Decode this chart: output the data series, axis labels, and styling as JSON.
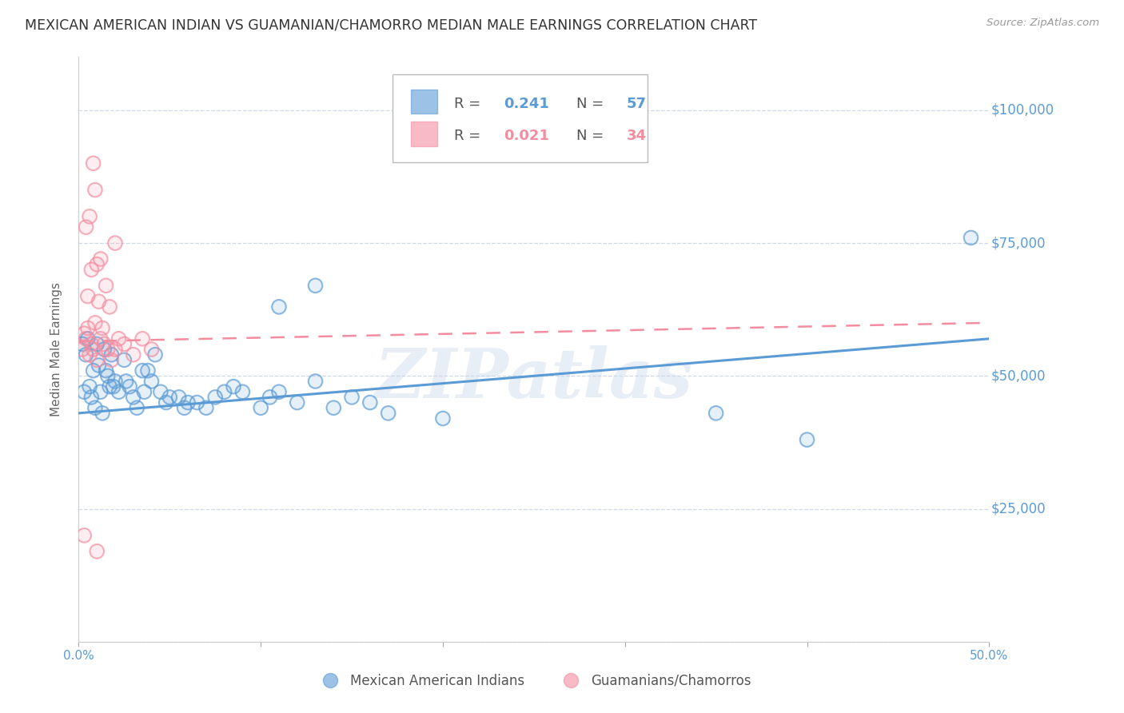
{
  "title": "MEXICAN AMERICAN INDIAN VS GUAMANIAN/CHAMORRO MEDIAN MALE EARNINGS CORRELATION CHART",
  "source": "Source: ZipAtlas.com",
  "ylabel": "Median Male Earnings",
  "xlim": [
    0.0,
    0.5
  ],
  "ylim": [
    0,
    110000
  ],
  "ytick_values": [
    0,
    25000,
    50000,
    75000,
    100000
  ],
  "xtick_values": [
    0.0,
    0.1,
    0.2,
    0.3,
    0.4,
    0.5
  ],
  "xtick_labels": [
    "0.0%",
    "",
    "",
    "",
    "",
    "50.0%"
  ],
  "background_color": "#ffffff",
  "grid_color": "#d0d8e8",
  "blue_color": "#5b9bd5",
  "pink_color": "#f48ca0",
  "blue_scatter": [
    [
      0.002,
      56000
    ],
    [
      0.003,
      47000
    ],
    [
      0.004,
      54000
    ],
    [
      0.005,
      57000
    ],
    [
      0.006,
      48000
    ],
    [
      0.007,
      46000
    ],
    [
      0.008,
      51000
    ],
    [
      0.009,
      44000
    ],
    [
      0.01,
      56000
    ],
    [
      0.011,
      52000
    ],
    [
      0.012,
      47000
    ],
    [
      0.013,
      43000
    ],
    [
      0.014,
      55000
    ],
    [
      0.015,
      51000
    ],
    [
      0.016,
      50000
    ],
    [
      0.017,
      48000
    ],
    [
      0.018,
      54000
    ],
    [
      0.019,
      48000
    ],
    [
      0.02,
      49000
    ],
    [
      0.022,
      47000
    ],
    [
      0.025,
      53000
    ],
    [
      0.026,
      49000
    ],
    [
      0.028,
      48000
    ],
    [
      0.03,
      46000
    ],
    [
      0.032,
      44000
    ],
    [
      0.035,
      51000
    ],
    [
      0.036,
      47000
    ],
    [
      0.038,
      51000
    ],
    [
      0.04,
      49000
    ],
    [
      0.042,
      54000
    ],
    [
      0.045,
      47000
    ],
    [
      0.048,
      45000
    ],
    [
      0.05,
      46000
    ],
    [
      0.055,
      46000
    ],
    [
      0.058,
      44000
    ],
    [
      0.06,
      45000
    ],
    [
      0.065,
      45000
    ],
    [
      0.07,
      44000
    ],
    [
      0.075,
      46000
    ],
    [
      0.08,
      47000
    ],
    [
      0.085,
      48000
    ],
    [
      0.09,
      47000
    ],
    [
      0.1,
      44000
    ],
    [
      0.105,
      46000
    ],
    [
      0.11,
      47000
    ],
    [
      0.12,
      45000
    ],
    [
      0.13,
      49000
    ],
    [
      0.14,
      44000
    ],
    [
      0.15,
      46000
    ],
    [
      0.16,
      45000
    ],
    [
      0.17,
      43000
    ],
    [
      0.2,
      42000
    ],
    [
      0.11,
      63000
    ],
    [
      0.13,
      67000
    ],
    [
      0.35,
      43000
    ],
    [
      0.4,
      38000
    ],
    [
      0.49,
      76000
    ]
  ],
  "pink_scatter": [
    [
      0.002,
      55000
    ],
    [
      0.003,
      58000
    ],
    [
      0.004,
      57000
    ],
    [
      0.005,
      59000
    ],
    [
      0.006,
      54000
    ],
    [
      0.007,
      56000
    ],
    [
      0.008,
      55000
    ],
    [
      0.009,
      60000
    ],
    [
      0.01,
      53000
    ],
    [
      0.011,
      64000
    ],
    [
      0.012,
      57000
    ],
    [
      0.013,
      59000
    ],
    [
      0.014,
      56000
    ],
    [
      0.015,
      67000
    ],
    [
      0.016,
      55000
    ],
    [
      0.017,
      63000
    ],
    [
      0.018,
      53000
    ],
    [
      0.02,
      55000
    ],
    [
      0.022,
      57000
    ],
    [
      0.025,
      56000
    ],
    [
      0.03,
      54000
    ],
    [
      0.035,
      57000
    ],
    [
      0.04,
      55000
    ],
    [
      0.007,
      70000
    ],
    [
      0.01,
      71000
    ],
    [
      0.006,
      80000
    ],
    [
      0.009,
      85000
    ],
    [
      0.008,
      90000
    ],
    [
      0.004,
      78000
    ],
    [
      0.012,
      72000
    ],
    [
      0.005,
      65000
    ],
    [
      0.02,
      75000
    ],
    [
      0.01,
      17000
    ],
    [
      0.003,
      20000
    ]
  ],
  "blue_line_x": [
    0.0,
    0.5
  ],
  "blue_line_y": [
    43000,
    57000
  ],
  "pink_line_x": [
    0.0,
    0.5
  ],
  "pink_line_y": [
    56500,
    60000
  ],
  "watermark": "ZIPatlas",
  "watermark_color": "#c5d5ea"
}
